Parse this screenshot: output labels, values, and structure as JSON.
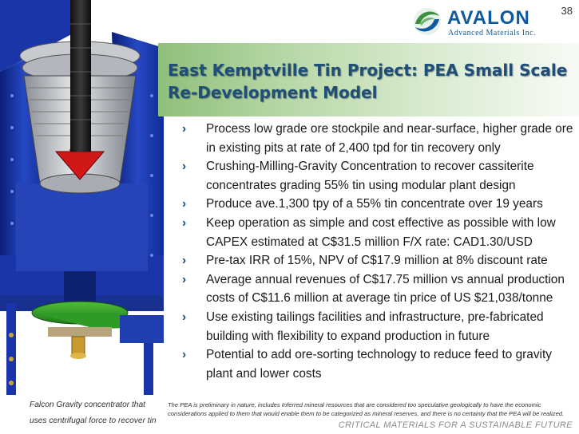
{
  "page_number": "38",
  "logo": {
    "name": "AVALON",
    "subtitle": "Advanced Materials Inc.",
    "colors": {
      "green": "#3c8f3c",
      "blue": "#0e5aa0"
    }
  },
  "title": {
    "line1": "East Kemptville Tin Project: PEA Small Scale",
    "line2": "Re-Development Model"
  },
  "bullets": [
    "Process low grade ore stockpile and near-surface, higher grade ore in existing pits at rate of 2,400 tpd for tin recovery only",
    "Crushing-Milling-Gravity Concentration to recover cassiterite concentrates grading 55% tin using modular plant design",
    "Produce ave.1,300 tpy of a 55% tin concentrate over 19 years",
    "Keep operation as simple and cost effective as possible with low CAPEX estimated at C$31.5 million F/X rate: CAD1.30/USD",
    "Pre-tax IRR of 15%, NPV of C$17.9 million at 8% discount rate",
    "Average annual revenues of C$17.75 million vs annual production costs of C$11.6 million at average tin price of US $21,038/tonne",
    "Use existing tailings facilities and infrastructure, pre-fabricated building with flexibility to expand production in future",
    "Potential to add ore-sorting technology to reduce feed to gravity plant and lower costs"
  ],
  "bullet_marker": "›",
  "image_caption": "Falcon Gravity concentrator that uses centrifugal force to recover tin",
  "disclaimer": "The PEA is preliminary in nature, includes Inferred mineral resources that are considered too speculative geologically to have the economic considerations applied to them that would enable them to be categorized as mineral reserves, and there is no certainty that the PEA will be realized.",
  "tagline": "CRITICAL MATERIALS FOR A SUSTAINABLE FUTURE",
  "illustration": {
    "subject": "falcon-gravity-concentrator-icon",
    "primary_color": "#1f3fb0"
  }
}
